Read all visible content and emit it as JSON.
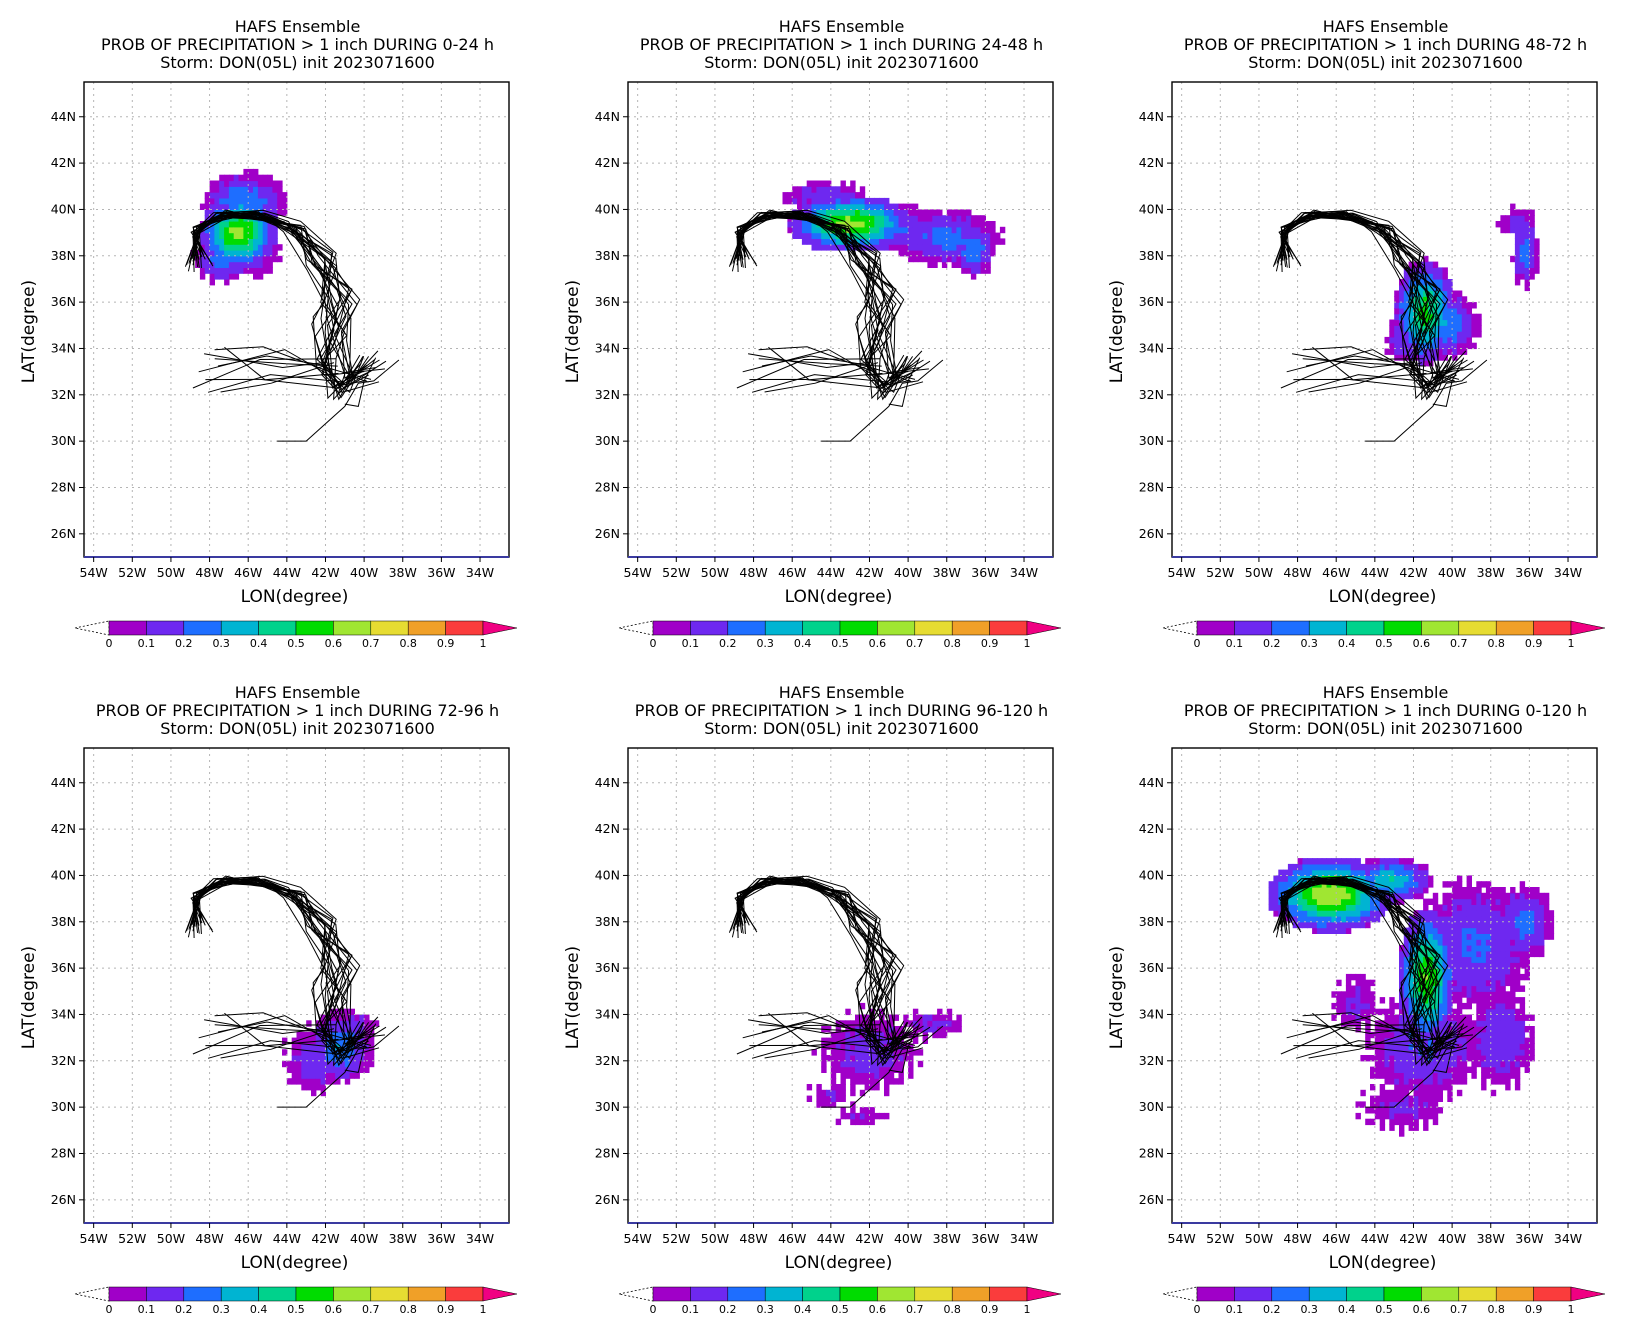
{
  "panels": [
    {
      "title": [
        "HAFS Ensemble",
        "PROB OF PRECIPITATION > 1 inch DURING  0-24 h",
        "Storm: DON(05L) init 2023071600"
      ]
    },
    {
      "title": [
        "HAFS Ensemble",
        "PROB OF PRECIPITATION > 1 inch DURING 24-48 h",
        "Storm: DON(05L) init 2023071600"
      ]
    },
    {
      "title": [
        "HAFS Ensemble",
        "PROB OF PRECIPITATION > 1 inch DURING 48-72 h",
        "Storm: DON(05L) init 2023071600"
      ]
    },
    {
      "title": [
        "HAFS Ensemble",
        "PROB OF PRECIPITATION > 1 inch DURING 72-96 h",
        "Storm: DON(05L) init 2023071600"
      ]
    },
    {
      "title": [
        "HAFS Ensemble",
        "PROB OF PRECIPITATION > 1 inch DURING 96-120 h",
        "Storm: DON(05L) init 2023071600"
      ]
    },
    {
      "title": [
        "HAFS Ensemble",
        "PROB OF PRECIPITATION > 1 inch DURING 0-120 h",
        "Storm: DON(05L) init 2023071600"
      ]
    }
  ],
  "axes": {
    "xlabel": "LON(degree)",
    "ylabel": "LAT(degree)",
    "lon_ticks": [
      "54W",
      "52W",
      "50W",
      "48W",
      "46W",
      "44W",
      "42W",
      "40W",
      "38W",
      "36W",
      "34W"
    ],
    "lat_ticks": [
      "26N",
      "28N",
      "30N",
      "32N",
      "34N",
      "36N",
      "38N",
      "40N",
      "42N",
      "44N"
    ]
  },
  "colorbar": {
    "labels": [
      "0",
      "0.1",
      "0.2",
      "0.3",
      "0.4",
      "0.5",
      "0.6",
      "0.7",
      "0.8",
      "0.9",
      "1"
    ],
    "colors": [
      "#a000c8",
      "#6e28f0",
      "#1e6eff",
      "#00b4d2",
      "#00d28c",
      "#00dc00",
      "#a0e632",
      "#e6dc32",
      "#f0a028",
      "#fa3c3c",
      "#f00082"
    ]
  }
}
